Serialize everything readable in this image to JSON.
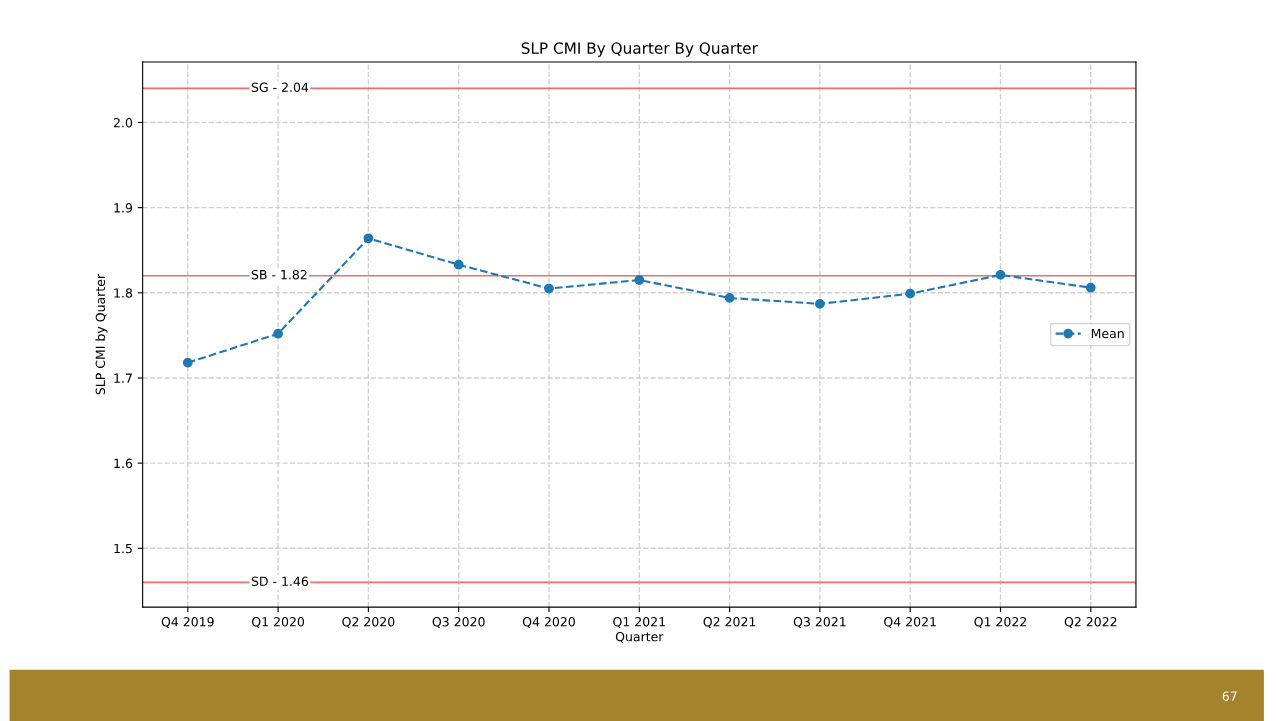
{
  "chart_data": {
    "type": "line",
    "title": "SLP CMI By Quarter By Quarter",
    "xlabel": "Quarter",
    "ylabel": "SLP CMI by Quarter",
    "categories": [
      "Q4 2019",
      "Q1 2020",
      "Q2 2020",
      "Q3 2020",
      "Q4 2020",
      "Q1 2021",
      "Q2 2021",
      "Q3 2021",
      "Q4 2021",
      "Q1 2022",
      "Q2 2022"
    ],
    "series": [
      {
        "name": "Mean",
        "color": "#1f77b4",
        "values": [
          1.718,
          1.752,
          1.864,
          1.833,
          1.805,
          1.815,
          1.794,
          1.787,
          1.799,
          1.821,
          1.806
        ]
      }
    ],
    "ylim": [
      1.431,
      2.071
    ],
    "yticks": [
      1.5,
      1.6,
      1.7,
      1.8,
      1.9,
      {
        "value": 2,
        "label": "2.0"
      }
    ],
    "ref_lines": [
      {
        "axis": "y",
        "value": 2.04,
        "label": "SG - 2.04",
        "color": "#e8726b"
      },
      {
        "axis": "y",
        "value": 1.82,
        "label": "SB - 1.82",
        "color": "#e8726b"
      },
      {
        "axis": "y",
        "value": 1.46,
        "label": "SD - 1.46",
        "color": "#e8726b"
      }
    ],
    "grid": true,
    "legend": "right",
    "marker": "circle",
    "line_style": "dashed",
    "annotations": [
      "67"
    ]
  }
}
